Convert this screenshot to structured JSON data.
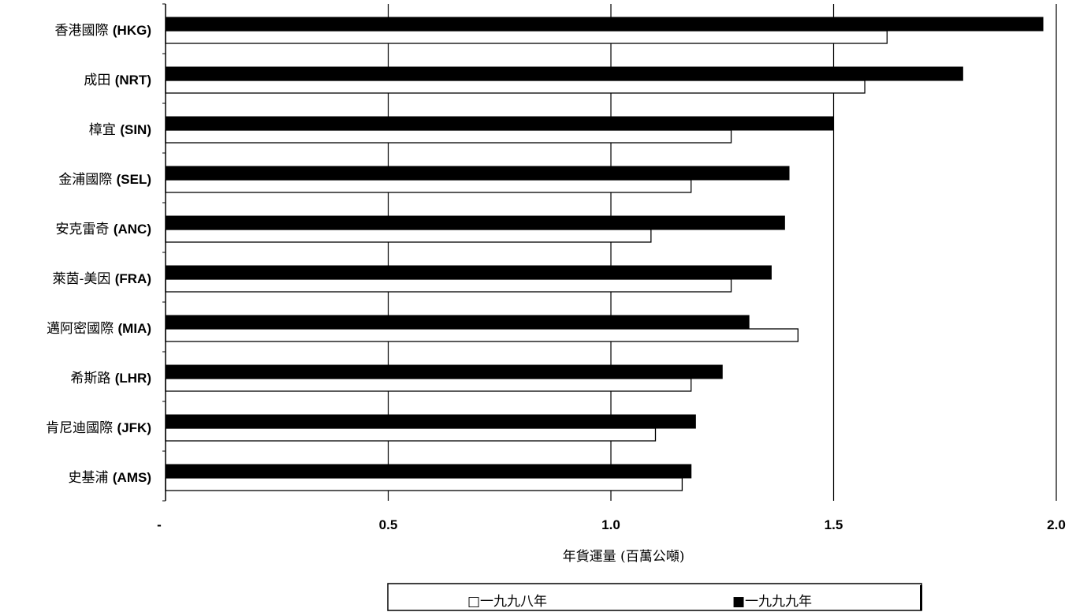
{
  "chart_data": {
    "type": "bar",
    "orientation": "horizontal",
    "title": "",
    "xlabel": "年貨運量 (百萬公噸)",
    "ylabel": "",
    "xlim": [
      0,
      2.0
    ],
    "x_tick_labels": [
      "-",
      "0.5",
      "1.0",
      "1.5",
      "2.0"
    ],
    "x_tick_values": [
      0,
      0.5,
      1.0,
      1.5,
      2.0
    ],
    "grid": "vertical",
    "legend_position": "bottom",
    "categories": [
      "香港國際 (HKG)",
      "成田 (NRT)",
      "樟宜 (SIN)",
      "金浦國際 (SEL)",
      "安克雷奇 (ANC)",
      "萊茵-美因 (FRA)",
      "邁阿密國際 (MIA)",
      "希斯路 (LHR)",
      "肯尼迪國際 (JFK)",
      "史基浦 (AMS)"
    ],
    "series": [
      {
        "name": "一九九九年",
        "color": "#000000",
        "values": [
          1.97,
          1.79,
          1.5,
          1.4,
          1.39,
          1.36,
          1.31,
          1.25,
          1.19,
          1.18
        ]
      },
      {
        "name": "一九九八年",
        "color": "#ffffff",
        "values": [
          1.62,
          1.57,
          1.27,
          1.18,
          1.09,
          1.27,
          1.42,
          1.18,
          1.1,
          1.16
        ]
      }
    ]
  },
  "legend": {
    "items": [
      {
        "marker": "□",
        "label": "一九九八年"
      },
      {
        "marker": "■",
        "label": "一九九九年"
      }
    ]
  }
}
